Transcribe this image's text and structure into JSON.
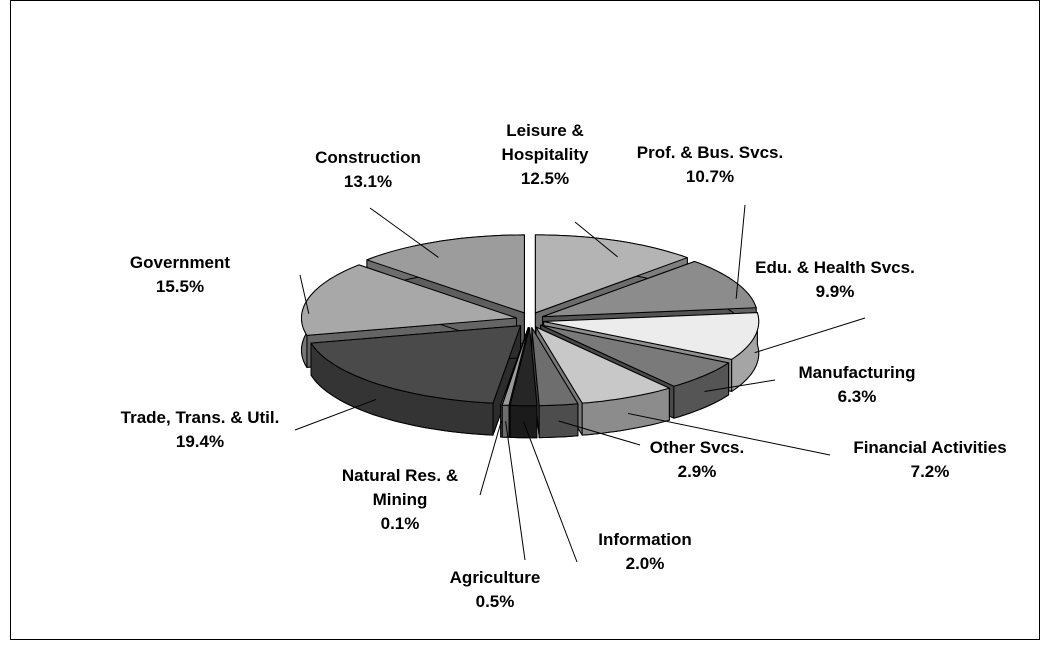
{
  "chart_data": {
    "type": "pie",
    "categories": [
      "Leisure & Hospitality",
      "Prof. & Bus. Svcs.",
      "Edu. & Health Svcs.",
      "Manufacturing",
      "Financial Activities",
      "Other Svcs.",
      "Information",
      "Agriculture",
      "Natural Res. & Mining",
      "Trade, Trans. & Util.",
      "Government",
      "Construction"
    ],
    "values": [
      12.5,
      10.7,
      9.9,
      6.3,
      7.2,
      2.9,
      2.0,
      0.5,
      0.1,
      19.4,
      15.5,
      13.1
    ],
    "value_labels": [
      "12.5%",
      "10.7%",
      "9.9%",
      "6.3%",
      "7.2%",
      "2.9%",
      "2.0%",
      "0.5%",
      "0.1%",
      "19.4%",
      "15.5%",
      "13.1%"
    ],
    "colors": [
      "#b4b4b4",
      "#8c8c8c",
      "#ececec",
      "#7a7a7a",
      "#c8c8c8",
      "#6e6e6e",
      "#262626",
      "#9a9a9a",
      "#d0d0d0",
      "#4a4a4a",
      "#a8a8a8",
      "#9c9c9c"
    ]
  }
}
